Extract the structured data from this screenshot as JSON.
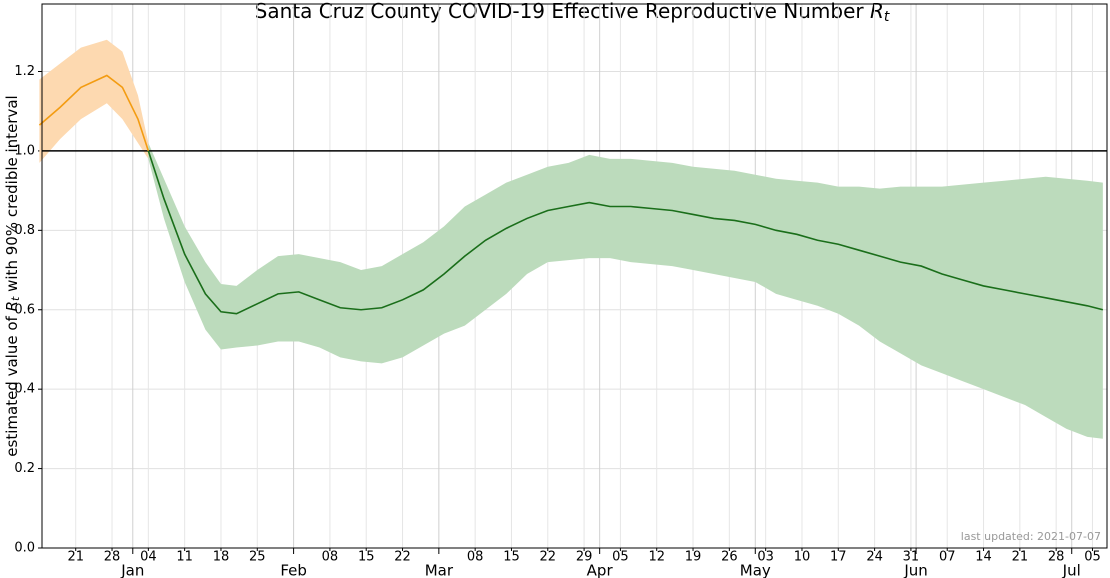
{
  "chart_data": {
    "type": "line",
    "title": "Santa Cruz County COVID-19 Effective Reproductive Number",
    "title_symbol": "R",
    "title_subscript": "t",
    "ylabel": {
      "before": "estimated value of",
      "symbol": "R",
      "subscript": "t",
      "after": "with 90% credible interval"
    },
    "annotation": "last updated: 2021-07-07",
    "xlim": [
      0.5,
      205.8
    ],
    "xticks": [
      {
        "value": 7,
        "label": "21"
      },
      {
        "value": 14,
        "label": "28"
      },
      {
        "value": 21,
        "label": "04"
      },
      {
        "value": 28,
        "label": "11"
      },
      {
        "value": 35,
        "label": "18"
      },
      {
        "value": 42,
        "label": "25"
      },
      {
        "value": 56,
        "label": "08"
      },
      {
        "value": 63,
        "label": "15"
      },
      {
        "value": 70,
        "label": "22"
      },
      {
        "value": 84,
        "label": "08"
      },
      {
        "value": 91,
        "label": "15"
      },
      {
        "value": 98,
        "label": "22"
      },
      {
        "value": 105,
        "label": "29"
      },
      {
        "value": 112,
        "label": "05"
      },
      {
        "value": 119,
        "label": "12"
      },
      {
        "value": 126,
        "label": "19"
      },
      {
        "value": 133,
        "label": "26"
      },
      {
        "value": 140,
        "label": "03"
      },
      {
        "value": 147,
        "label": "10"
      },
      {
        "value": 154,
        "label": "17"
      },
      {
        "value": 161,
        "label": "24"
      },
      {
        "value": 168,
        "label": "31"
      },
      {
        "value": 175,
        "label": "07"
      },
      {
        "value": 182,
        "label": "14"
      },
      {
        "value": 189,
        "label": "21"
      },
      {
        "value": 196,
        "label": "28"
      },
      {
        "value": 203,
        "label": "05"
      }
    ],
    "month_ticks": [
      {
        "value": 18,
        "label": "Jan"
      },
      {
        "value": 49,
        "label": "Feb"
      },
      {
        "value": 77,
        "label": "Mar"
      },
      {
        "value": 108,
        "label": "Apr"
      },
      {
        "value": 138,
        "label": "May"
      },
      {
        "value": 169,
        "label": "Jun"
      },
      {
        "value": 199,
        "label": "Jul"
      }
    ],
    "ylim": [
      0,
      1.37
    ],
    "yticks": [
      {
        "value": 0,
        "label": "0.0"
      },
      0.2,
      0.4,
      0.6,
      0.8,
      {
        "value": 1,
        "label": "1.0"
      },
      1.2
    ],
    "hline": 1,
    "grid": true,
    "x": [
      0,
      4,
      8,
      13,
      16,
      19,
      21,
      24,
      28,
      32,
      35,
      38,
      42,
      46,
      50,
      54,
      58,
      62,
      66,
      70,
      74,
      78,
      82,
      86,
      90,
      94,
      98,
      102,
      106,
      110,
      114,
      118,
      122,
      126,
      130,
      134,
      138,
      142,
      146,
      150,
      154,
      158,
      162,
      166,
      170,
      174,
      178,
      182,
      186,
      190,
      194,
      198,
      202,
      205
    ],
    "series": [
      {
        "color": "#f39c12",
        "band_color": "#fdd9b0",
        "values": [
          1.065,
          1.11,
          1.16,
          1.19,
          1.16,
          1.08,
          1.0,
          null,
          null,
          null,
          null,
          null,
          null,
          null,
          null,
          null,
          null,
          null,
          null,
          null,
          null,
          null,
          null,
          null,
          null,
          null,
          null,
          null,
          null,
          null,
          null,
          null,
          null,
          null,
          null,
          null,
          null,
          null,
          null,
          null,
          null,
          null,
          null,
          null,
          null,
          null,
          null,
          null,
          null,
          null,
          null,
          null,
          null,
          null
        ],
        "lower": [
          0.97,
          1.03,
          1.08,
          1.12,
          1.08,
          1.02,
          0.98,
          null,
          null,
          null,
          null,
          null,
          null,
          null,
          null,
          null,
          null,
          null,
          null,
          null,
          null,
          null,
          null,
          null,
          null,
          null,
          null,
          null,
          null,
          null,
          null,
          null,
          null,
          null,
          null,
          null,
          null,
          null,
          null,
          null,
          null,
          null,
          null,
          null,
          null,
          null,
          null,
          null,
          null,
          null,
          null,
          null,
          null,
          null
        ],
        "upper": [
          1.18,
          1.22,
          1.26,
          1.28,
          1.25,
          1.14,
          1.02,
          null,
          null,
          null,
          null,
          null,
          null,
          null,
          null,
          null,
          null,
          null,
          null,
          null,
          null,
          null,
          null,
          null,
          null,
          null,
          null,
          null,
          null,
          null,
          null,
          null,
          null,
          null,
          null,
          null,
          null,
          null,
          null,
          null,
          null,
          null,
          null,
          null,
          null,
          null,
          null,
          null,
          null,
          null,
          null,
          null,
          null,
          null
        ]
      },
      {
        "color": "#1a6e1a",
        "band_color": "#bcdbbc",
        "values": [
          null,
          null,
          null,
          null,
          null,
          null,
          1.0,
          0.88,
          0.74,
          0.64,
          0.595,
          0.59,
          0.615,
          0.64,
          0.645,
          0.625,
          0.605,
          0.6,
          0.605,
          0.625,
          0.65,
          0.69,
          0.735,
          0.775,
          0.805,
          0.83,
          0.85,
          0.86,
          0.87,
          0.86,
          0.86,
          0.855,
          0.85,
          0.84,
          0.83,
          0.825,
          0.815,
          0.8,
          0.79,
          0.775,
          0.765,
          0.75,
          0.735,
          0.72,
          0.71,
          0.69,
          0.675,
          0.66,
          0.65,
          0.64,
          0.63,
          0.62,
          0.61,
          0.6
        ],
        "lower": [
          null,
          null,
          null,
          null,
          null,
          null,
          0.98,
          0.83,
          0.67,
          0.55,
          0.5,
          0.505,
          0.51,
          0.52,
          0.52,
          0.505,
          0.48,
          0.47,
          0.465,
          0.48,
          0.51,
          0.54,
          0.56,
          0.6,
          0.64,
          0.69,
          0.72,
          0.725,
          0.73,
          0.73,
          0.72,
          0.715,
          0.71,
          0.7,
          0.69,
          0.68,
          0.67,
          0.64,
          0.625,
          0.61,
          0.59,
          0.56,
          0.52,
          0.49,
          0.46,
          0.44,
          0.42,
          0.4,
          0.38,
          0.36,
          0.33,
          0.3,
          0.28,
          0.275
        ],
        "upper": [
          null,
          null,
          null,
          null,
          null,
          null,
          1.02,
          0.93,
          0.81,
          0.72,
          0.665,
          0.66,
          0.7,
          0.735,
          0.74,
          0.73,
          0.72,
          0.7,
          0.71,
          0.74,
          0.77,
          0.81,
          0.86,
          0.89,
          0.92,
          0.94,
          0.96,
          0.97,
          0.99,
          0.98,
          0.98,
          0.975,
          0.97,
          0.96,
          0.955,
          0.95,
          0.94,
          0.93,
          0.925,
          0.92,
          0.91,
          0.91,
          0.905,
          0.91,
          0.91,
          0.91,
          0.915,
          0.92,
          0.925,
          0.93,
          0.935,
          0.93,
          0.925,
          0.92
        ]
      }
    ]
  }
}
